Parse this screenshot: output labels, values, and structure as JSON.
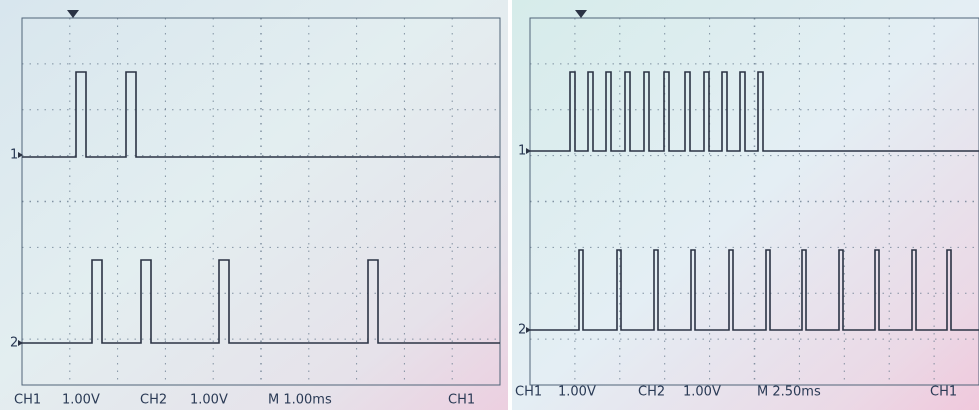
{
  "screens": [
    {
      "channel_markers": [
        "1",
        "2"
      ],
      "status": {
        "ch1": "CH1",
        "ch1_scale": "1.00V",
        "ch2": "CH2",
        "ch2_scale": "1.00V",
        "timebase": "M 1.00ms",
        "trigger": "CH1"
      }
    },
    {
      "channel_markers": [
        "1",
        "2"
      ],
      "status": {
        "ch1": "CH1",
        "ch1_scale": "1.00V",
        "ch2": "CH2",
        "ch2_scale": "1.00V",
        "timebase": "M 2.50ms",
        "trigger": "CH1"
      }
    }
  ]
}
